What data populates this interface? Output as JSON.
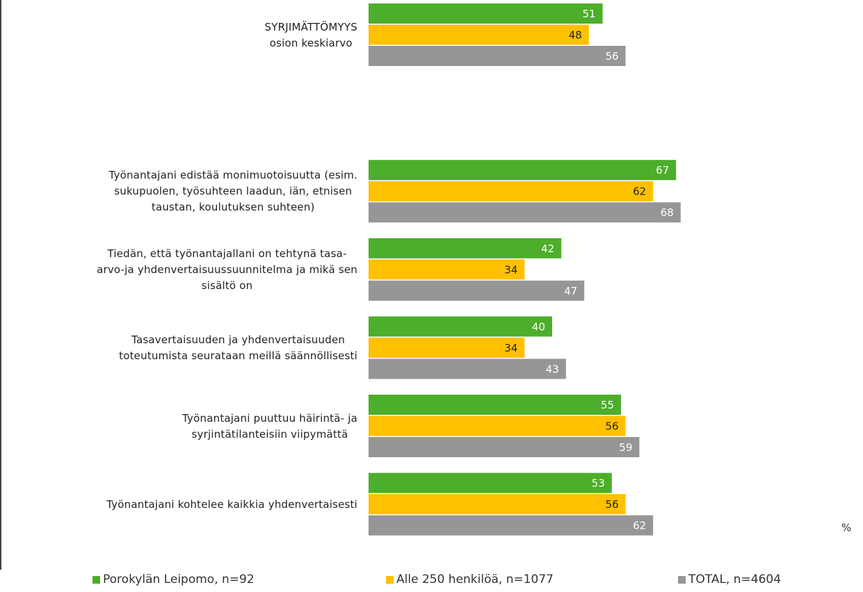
{
  "chart_data": {
    "type": "bar",
    "orientation": "horizontal",
    "categories": [
      "SYRJIMÄTTÖMYYS\nosion keskiarvo",
      null,
      "Työnantajani edistää monimuotoisuutta (esim.\nsukupuolen, työsuhteen laadun, iän, etnisen\ntaustan, koulutuksen suhteen)",
      "Tiedän, että työnantajallani on tehtynä tasa-\narvo-ja yhdenvertaisuussuunnitelma ja mikä sen\nsisältö on",
      "Tasavertaisuuden ja yhdenvertaisuuden\ntoteutumista seurataan meillä säännöllisesti",
      "Työnantajani puuttuu häirintä- ja\nsyrjintätilanteisiin viipymättä",
      "Työnantajani kohtelee kaikkia yhdenvertaisesti"
    ],
    "series": [
      {
        "name": "Porokylän Leipomo, n=92",
        "color": "#4cae2a",
        "values": [
          51,
          null,
          67,
          42,
          40,
          55,
          53
        ]
      },
      {
        "name": "Alle 250 henkilöä, n=1077",
        "color": "#ffc000",
        "values": [
          48,
          null,
          62,
          34,
          34,
          56,
          56
        ]
      },
      {
        "name": "TOTAL, n=4604",
        "color": "#969696",
        "values": [
          56,
          null,
          68,
          47,
          43,
          59,
          62
        ]
      }
    ],
    "xlim": [
      0,
      100
    ],
    "unit_label": "%"
  }
}
